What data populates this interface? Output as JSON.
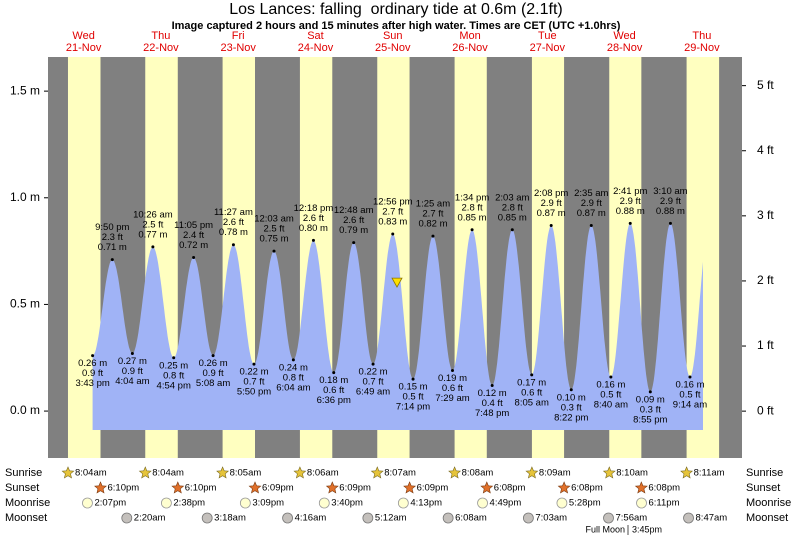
{
  "chart_data": {
    "type": "tide",
    "title": "Los Lances: falling  ordinary tide at 0.6m (2.1ft)",
    "subtitle": "Image captured 2 hours and 15 minutes after high water. Times are CET (UTC +1.0hrs)",
    "current_level": 0.6,
    "days": [
      "Wed",
      "Thu",
      "Fri",
      "Sat",
      "Sun",
      "Mon",
      "Tue",
      "Wed",
      "Thu"
    ],
    "dates": [
      "21-Nov",
      "22-Nov",
      "23-Nov",
      "24-Nov",
      "25-Nov",
      "26-Nov",
      "27-Nov",
      "28-Nov",
      "29-Nov"
    ],
    "ylim": [
      -0.22,
      1.66
    ],
    "yticks": [
      {
        "value": 0,
        "label": "0.0 m"
      },
      {
        "value": 0.5,
        "label": "0.5 m"
      },
      {
        "value": 1.0,
        "label": "1.0 m"
      },
      {
        "value": 1.5,
        "label": "1.5 m"
      }
    ],
    "y2lim": [
      -0.72,
      5.44
    ],
    "y2ticks": [
      {
        "value": 0,
        "label": "0 ft"
      },
      {
        "value": 1,
        "label": "1 ft"
      },
      {
        "value": 2,
        "label": "2 ft"
      },
      {
        "value": 3,
        "label": "3 ft"
      },
      {
        "value": 4,
        "label": "4 ft"
      },
      {
        "value": 5,
        "label": "5 ft"
      }
    ],
    "extremes": {
      "times": [
        "3:43 pm",
        "9:50 pm",
        "4:04 am",
        "10:26 am",
        "4:54 pm",
        "11:05 pm",
        "5:08 am",
        "11:27 am",
        "5:50 pm",
        "12:03 am",
        "6:04 am",
        "12:18 pm",
        "6:36 pm",
        "12:48 am",
        "6:49 am",
        "12:56 pm",
        "7:14 pm",
        "1:25 am",
        "7:29 am",
        "1:34 pm",
        "7:48 pm",
        "2:03 am",
        "8:05 am",
        "2:08 pm",
        "8:22 pm",
        "2:35 am",
        "8:40 am",
        "2:41 pm",
        "8:55 pm",
        "3:10 am",
        "9:14 am"
      ],
      "values": [
        0.26,
        0.71,
        0.27,
        0.77,
        0.25,
        0.72,
        0.26,
        0.78,
        0.22,
        0.75,
        0.24,
        0.8,
        0.18,
        0.79,
        0.22,
        0.83,
        0.15,
        0.82,
        0.19,
        0.85,
        0.12,
        0.85,
        0.17,
        0.87,
        0.1,
        0.87,
        0.16,
        0.88,
        0.09,
        0.88,
        0.16
      ],
      "value_labels": [
        "0.26 m",
        "0.71 m",
        "0.27 m",
        "0.77 m",
        "0.25 m",
        "0.72 m",
        "0.26 m",
        "0.78 m",
        "0.22 m",
        "0.75 m",
        "0.24 m",
        "0.80 m",
        "0.18 m",
        "0.79 m",
        "0.22 m",
        "0.83 m",
        "0.15 m",
        "0.82 m",
        "0.19 m",
        "0.85 m",
        "0.12 m",
        "0.85 m",
        "0.17 m",
        "0.87 m",
        "0.10 m",
        "0.87 m",
        "0.16 m",
        "0.88 m",
        "0.09 m",
        "0.88 m",
        "0.16 m"
      ],
      "ft_labels": [
        "0.9 ft",
        "2.3 ft",
        "0.9 ft",
        "2.5 ft",
        "0.8 ft",
        "2.4 ft",
        "0.9 ft",
        "2.6 ft",
        "0.7 ft",
        "2.5 ft",
        "0.8 ft",
        "2.6 ft",
        "0.6 ft",
        "2.6 ft",
        "0.7 ft",
        "2.7 ft",
        "0.5 ft",
        "2.7 ft",
        "0.6 ft",
        "2.8 ft",
        "0.4 ft",
        "2.8 ft",
        "0.6 ft",
        "2.9 ft",
        "0.3 ft",
        "2.9 ft",
        "0.5 ft",
        "2.9 ft",
        "0.3 ft",
        "2.9 ft",
        "0.5 ft"
      ]
    },
    "colors": {
      "water": "#a0b3f6",
      "day": "#ffffc0",
      "night": "#808080",
      "day_label": "#e00000",
      "marker": "#ffe000"
    },
    "almanac": [
      {
        "name": "Sunrise",
        "times": [
          "8:04am",
          "8:04am",
          "8:05am",
          "8:06am",
          "8:07am",
          "8:08am",
          "8:09am",
          "8:10am",
          "8:11am"
        ]
      },
      {
        "name": "Sunset",
        "times": [
          "6:10pm",
          "6:10pm",
          "6:09pm",
          "6:09pm",
          "6:09pm",
          "6:08pm",
          "6:08pm",
          "6:08pm"
        ]
      },
      {
        "name": "Moonrise",
        "times": [
          "2:07pm",
          "2:38pm",
          "3:09pm",
          "3:40pm",
          "4:13pm",
          "4:49pm",
          "5:28pm",
          "6:11pm"
        ]
      },
      {
        "name": "Moonset",
        "times": [
          null,
          "2:20am",
          "3:18am",
          "4:16am",
          "5:12am",
          "6:08am",
          "7:03am",
          "7:56am",
          "8:47am"
        ]
      }
    ],
    "full_moon": {
      "label": "Full Moon",
      "time": "3:45pm"
    }
  }
}
